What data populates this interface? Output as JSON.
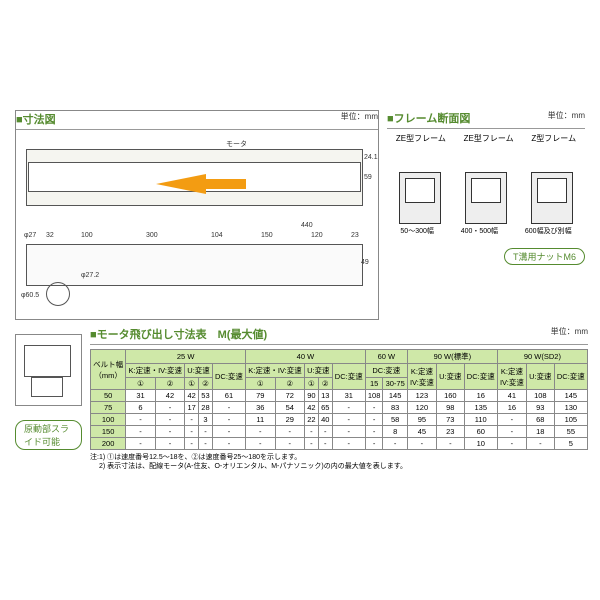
{
  "sections": {
    "dim": {
      "title": "■寸法図",
      "unit": "単位：mm"
    },
    "frame": {
      "title": "■フレーム断面図",
      "unit": "単位：mm"
    },
    "table": {
      "title": "■モータ飛び出し寸法表　M(最大値)",
      "unit": "単位：mm"
    }
  },
  "frame_section": {
    "types": [
      "ZE型フレーム",
      "ZE型フレーム",
      "Z型フレーム"
    ],
    "widths": [
      "50～300幅",
      "400・500幅",
      "600幅及び別幅"
    ],
    "nut_label": "T溝用ナットM6"
  },
  "badges": {
    "slide": "原動部スライド可能"
  },
  "dims": {
    "d27": "φ27",
    "d32": "32",
    "d100": "100",
    "d300": "300",
    "d104": "104",
    "d150": "150",
    "d120": "120",
    "d440": "440",
    "d23": "23",
    "d605": "φ60.5",
    "d272": "φ27.2",
    "d49": "49",
    "d59": "59",
    "d24a": "24.1",
    "motor": "モータ"
  },
  "table": {
    "belt_header": "ベルト幅\n（mm）",
    "power_groups": [
      "25 W",
      "40 W",
      "60 W",
      "90 W(標準)",
      "90 W(SD2)"
    ],
    "sub_headers_wide": [
      "K:定速・IV:変速",
      "U:変速",
      "DC:変速"
    ],
    "sub_headers_narrow": [
      "K:定速\nIV:変速",
      "U:変速",
      "DC:変速"
    ],
    "sub2": [
      "①",
      "②",
      "①",
      "②"
    ],
    "sub_60": [
      "15",
      "30-75"
    ],
    "belt_widths": [
      "50",
      "75",
      "100",
      "150",
      "200"
    ],
    "data": [
      [
        "31",
        "42",
        "42",
        "53",
        "61",
        "79",
        "72",
        "90",
        "13",
        "31",
        "108",
        "145",
        "123",
        "160",
        "16",
        "41",
        "108",
        "145",
        "123",
        "36"
      ],
      [
        "6",
        "-",
        "17",
        "28",
        "-",
        "36",
        "54",
        "42",
        "65",
        "-",
        "-",
        "83",
        "120",
        "98",
        "135",
        "16",
        "93",
        "130",
        "11"
      ],
      [
        "-",
        "-",
        "-",
        "3",
        "-",
        "11",
        "29",
        "22",
        "40",
        "-",
        "-",
        "58",
        "95",
        "73",
        "110",
        "-",
        "68",
        "105",
        "-"
      ],
      [
        "-",
        "-",
        "-",
        "-",
        "-",
        "-",
        "-",
        "-",
        "-",
        "-",
        "-",
        "8",
        "45",
        "23",
        "60",
        "-",
        "18",
        "55",
        "-"
      ],
      [
        "-",
        "-",
        "-",
        "-",
        "-",
        "-",
        "-",
        "-",
        "-",
        "-",
        "-",
        "-",
        "-",
        "-",
        "10",
        "-",
        "-",
        "5",
        "-"
      ]
    ],
    "note": "注:1) ①は速度番号12.5～18を、②は速度番号25～180を示します。\n　 2) 表示寸法は、配線モータ(A-住友、O-オリエンタル、M-パナソニック)の内の最大値を表します。"
  }
}
